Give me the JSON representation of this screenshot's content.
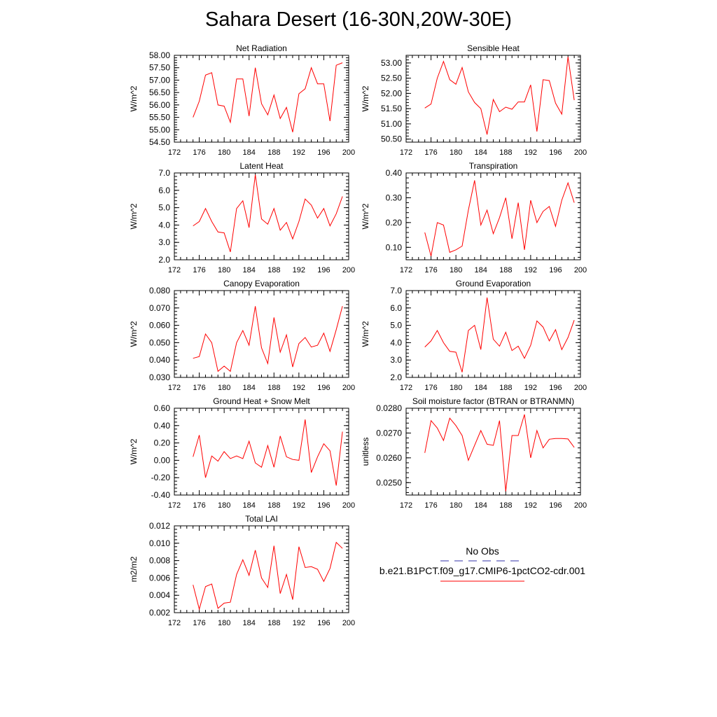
{
  "title": "Sahara Desert (16-30N,20W-30E)",
  "legend": {
    "obs_label": "No Obs",
    "model_label": "b.e21.B1PCT.f09_g17.CMIP6-1pctCO2-cdr.001",
    "obs_color": "#3333aa",
    "model_color": "#ff0000"
  },
  "chart_data": [
    {
      "type": "line",
      "title": "Net Radiation",
      "ylabel": "W/m^2",
      "xlim": [
        172,
        200
      ],
      "ylim": [
        54.5,
        58.0
      ],
      "xticks": [
        172,
        176,
        180,
        184,
        188,
        192,
        196,
        200
      ],
      "yticks": [
        54.5,
        55.0,
        55.5,
        56.0,
        56.5,
        57.0,
        57.5,
        58.0
      ],
      "ytick_labels": [
        "54.50",
        "55.00",
        "55.50",
        "56.00",
        "56.50",
        "57.00",
        "57.50",
        "58.00"
      ],
      "x": [
        175,
        176,
        177,
        178,
        179,
        180,
        181,
        182,
        183,
        184,
        185,
        186,
        187,
        188,
        189,
        190,
        191,
        192,
        193,
        194,
        195,
        196,
        197,
        198,
        199
      ],
      "series": [
        {
          "values": [
            55.5,
            56.15,
            57.2,
            57.3,
            56.0,
            55.95,
            55.3,
            57.05,
            57.05,
            55.55,
            57.5,
            56.05,
            55.6,
            56.4,
            55.45,
            55.9,
            54.9,
            56.45,
            56.65,
            57.5,
            56.85,
            56.85,
            55.35,
            57.6,
            57.7
          ],
          "color": "#ff0000"
        }
      ]
    },
    {
      "type": "line",
      "title": "Sensible Heat",
      "ylabel": "W/m^2",
      "xlim": [
        172,
        200
      ],
      "ylim": [
        50.4,
        53.25
      ],
      "xticks": [
        172,
        176,
        180,
        184,
        188,
        192,
        196,
        200
      ],
      "yticks": [
        50.5,
        51.0,
        51.5,
        52.0,
        52.5,
        53.0
      ],
      "ytick_labels": [
        "50.50",
        "51.00",
        "51.50",
        "52.00",
        "52.50",
        "53.00"
      ],
      "x": [
        175,
        176,
        177,
        178,
        179,
        180,
        181,
        182,
        183,
        184,
        185,
        186,
        187,
        188,
        189,
        190,
        191,
        192,
        193,
        194,
        195,
        196,
        197,
        198,
        199
      ],
      "series": [
        {
          "values": [
            51.52,
            51.65,
            52.5,
            53.05,
            52.45,
            52.3,
            52.85,
            52.05,
            51.7,
            51.5,
            50.65,
            51.8,
            51.4,
            51.55,
            51.48,
            51.72,
            51.72,
            52.28,
            50.75,
            52.45,
            52.42,
            51.68,
            51.32,
            53.2,
            51.78
          ],
          "color": "#ff0000"
        }
      ]
    },
    {
      "type": "line",
      "title": "Latent Heat",
      "ylabel": "W/m^2",
      "xlim": [
        172,
        200
      ],
      "ylim": [
        2.0,
        7.0
      ],
      "xticks": [
        172,
        176,
        180,
        184,
        188,
        192,
        196,
        200
      ],
      "yticks": [
        2.0,
        3.0,
        4.0,
        5.0,
        6.0,
        7.0
      ],
      "ytick_labels": [
        "2.0",
        "3.0",
        "4.0",
        "5.0",
        "6.0",
        "7.0"
      ],
      "x": [
        175,
        176,
        177,
        178,
        179,
        180,
        181,
        182,
        183,
        184,
        185,
        186,
        187,
        188,
        189,
        190,
        191,
        192,
        193,
        194,
        195,
        196,
        197,
        198,
        199
      ],
      "series": [
        {
          "values": [
            3.95,
            4.2,
            4.95,
            4.2,
            3.6,
            3.55,
            2.45,
            4.95,
            5.4,
            3.85,
            6.9,
            4.35,
            4.05,
            4.95,
            3.7,
            4.15,
            3.2,
            4.2,
            5.5,
            5.15,
            4.4,
            4.95,
            3.95,
            4.65,
            5.65
          ],
          "color": "#ff0000"
        }
      ]
    },
    {
      "type": "line",
      "title": "Transpiration",
      "ylabel": "W/m^2",
      "xlim": [
        172,
        200
      ],
      "ylim": [
        0.05,
        0.4
      ],
      "xticks": [
        172,
        176,
        180,
        184,
        188,
        192,
        196,
        200
      ],
      "yticks": [
        0.1,
        0.2,
        0.3,
        0.4
      ],
      "ytick_labels": [
        "0.10",
        "0.20",
        "0.30",
        "0.40"
      ],
      "x": [
        175,
        176,
        177,
        178,
        179,
        180,
        181,
        182,
        183,
        184,
        185,
        186,
        187,
        188,
        189,
        190,
        191,
        192,
        193,
        194,
        195,
        196,
        197,
        198,
        199
      ],
      "series": [
        {
          "values": [
            0.16,
            0.065,
            0.2,
            0.19,
            0.08,
            0.09,
            0.105,
            0.25,
            0.37,
            0.19,
            0.25,
            0.155,
            0.22,
            0.3,
            0.135,
            0.28,
            0.09,
            0.29,
            0.2,
            0.245,
            0.265,
            0.185,
            0.29,
            0.36,
            0.28
          ],
          "color": "#ff0000"
        }
      ]
    },
    {
      "type": "line",
      "title": "Canopy Evaporation",
      "ylabel": "W/m^2",
      "xlim": [
        172,
        200
      ],
      "ylim": [
        0.03,
        0.08
      ],
      "xticks": [
        172,
        176,
        180,
        184,
        188,
        192,
        196,
        200
      ],
      "yticks": [
        0.03,
        0.04,
        0.05,
        0.06,
        0.07,
        0.08
      ],
      "ytick_labels": [
        "0.030",
        "0.040",
        "0.050",
        "0.060",
        "0.070",
        "0.080"
      ],
      "x": [
        175,
        176,
        177,
        178,
        179,
        180,
        181,
        182,
        183,
        184,
        185,
        186,
        187,
        188,
        189,
        190,
        191,
        192,
        193,
        194,
        195,
        196,
        197,
        198,
        199
      ],
      "series": [
        {
          "values": [
            0.041,
            0.042,
            0.055,
            0.05,
            0.0335,
            0.0365,
            0.0335,
            0.05,
            0.057,
            0.0485,
            0.071,
            0.047,
            0.038,
            0.0645,
            0.0445,
            0.0545,
            0.036,
            0.0495,
            0.053,
            0.0475,
            0.0485,
            0.0555,
            0.045,
            0.0575,
            0.071
          ],
          "color": "#ff0000"
        }
      ]
    },
    {
      "type": "line",
      "title": "Ground Evaporation",
      "ylabel": "W/m^2",
      "xlim": [
        172,
        200
      ],
      "ylim": [
        2.0,
        7.0
      ],
      "xticks": [
        172,
        176,
        180,
        184,
        188,
        192,
        196,
        200
      ],
      "yticks": [
        2.0,
        3.0,
        4.0,
        5.0,
        6.0,
        7.0
      ],
      "ytick_labels": [
        "2.0",
        "3.0",
        "4.0",
        "5.0",
        "6.0",
        "7.0"
      ],
      "x": [
        175,
        176,
        177,
        178,
        179,
        180,
        181,
        182,
        183,
        184,
        185,
        186,
        187,
        188,
        189,
        190,
        191,
        192,
        193,
        194,
        195,
        196,
        197,
        198,
        199
      ],
      "series": [
        {
          "values": [
            3.75,
            4.1,
            4.7,
            4.0,
            3.5,
            3.45,
            2.3,
            4.7,
            5.0,
            3.6,
            6.6,
            4.2,
            3.8,
            4.6,
            3.55,
            3.8,
            3.1,
            3.85,
            5.25,
            4.9,
            4.1,
            4.75,
            3.6,
            4.3,
            5.3
          ],
          "color": "#ff0000"
        }
      ]
    },
    {
      "type": "line",
      "title": "Ground Heat + Snow Melt",
      "ylabel": "W/m^2",
      "xlim": [
        172,
        200
      ],
      "ylim": [
        -0.4,
        0.6
      ],
      "xticks": [
        172,
        176,
        180,
        184,
        188,
        192,
        196,
        200
      ],
      "yticks": [
        -0.4,
        -0.2,
        0.0,
        0.2,
        0.4,
        0.6
      ],
      "ytick_labels": [
        "-0.40",
        "-0.20",
        "0.00",
        "0.20",
        "0.40",
        "0.60"
      ],
      "x": [
        175,
        176,
        177,
        178,
        179,
        180,
        181,
        182,
        183,
        184,
        185,
        186,
        187,
        188,
        189,
        190,
        191,
        192,
        193,
        194,
        195,
        196,
        197,
        198,
        199
      ],
      "series": [
        {
          "values": [
            0.04,
            0.29,
            -0.2,
            0.05,
            -0.01,
            0.1,
            0.02,
            0.05,
            0.02,
            0.22,
            -0.03,
            -0.08,
            0.17,
            -0.08,
            0.28,
            0.04,
            0.01,
            0.0,
            0.47,
            -0.14,
            0.04,
            0.19,
            0.11,
            -0.29,
            0.33
          ],
          "color": "#ff0000"
        }
      ]
    },
    {
      "type": "line",
      "title": "Soil moisture factor (BTRAN or BTRANMN)",
      "ylabel": "unitless",
      "xlim": [
        172,
        200
      ],
      "ylim": [
        0.0245,
        0.028
      ],
      "xticks": [
        172,
        176,
        180,
        184,
        188,
        192,
        196,
        200
      ],
      "yticks": [
        0.025,
        0.026,
        0.027,
        0.028
      ],
      "ytick_labels": [
        "0.0250",
        "0.0260",
        "0.0270",
        "0.0280"
      ],
      "x": [
        175,
        176,
        177,
        178,
        179,
        180,
        181,
        182,
        183,
        184,
        185,
        186,
        187,
        188,
        189,
        190,
        191,
        192,
        193,
        194,
        195,
        196,
        197,
        198,
        199
      ],
      "series": [
        {
          "values": [
            0.0262,
            0.0275,
            0.0272,
            0.0267,
            0.0276,
            0.0273,
            0.0269,
            0.0259,
            0.0265,
            0.0271,
            0.02655,
            0.0265,
            0.0275,
            0.02465,
            0.0269,
            0.0269,
            0.02775,
            0.026,
            0.0271,
            0.0264,
            0.02675,
            0.02678,
            0.02678,
            0.02676,
            0.02642
          ],
          "color": "#ff0000"
        }
      ]
    },
    {
      "type": "line",
      "title": "Total LAI",
      "ylabel": "m2/m2",
      "xlim": [
        172,
        200
      ],
      "ylim": [
        0.002,
        0.012
      ],
      "xticks": [
        172,
        176,
        180,
        184,
        188,
        192,
        196,
        200
      ],
      "yticks": [
        0.002,
        0.004,
        0.006,
        0.008,
        0.01,
        0.012
      ],
      "ytick_labels": [
        "0.002",
        "0.004",
        "0.006",
        "0.008",
        "0.010",
        "0.012"
      ],
      "x": [
        175,
        176,
        177,
        178,
        179,
        180,
        181,
        182,
        183,
        184,
        185,
        186,
        187,
        188,
        189,
        190,
        191,
        192,
        193,
        194,
        195,
        196,
        197,
        198,
        199
      ],
      "series": [
        {
          "values": [
            0.0052,
            0.0024,
            0.005,
            0.0053,
            0.0025,
            0.0031,
            0.0032,
            0.0064,
            0.0081,
            0.0063,
            0.0092,
            0.006,
            0.0049,
            0.0097,
            0.0042,
            0.0064,
            0.0035,
            0.0096,
            0.0072,
            0.0073,
            0.007,
            0.0056,
            0.0071,
            0.0101,
            0.0094
          ],
          "color": "#ff0000"
        }
      ]
    }
  ]
}
